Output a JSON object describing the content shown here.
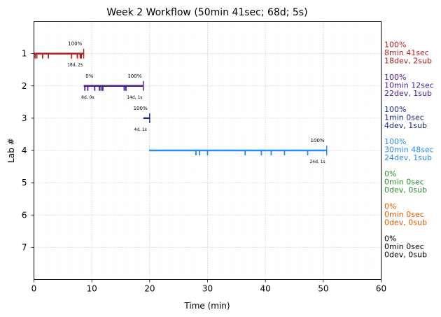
{
  "chart_data": {
    "type": "timeline",
    "title": "Week 2 Workflow (50min 41sec; 68d; 5s)",
    "xlabel": "Time (min)",
    "ylabel": "Lab #",
    "xlim": [
      0,
      60
    ],
    "ylim": [
      8,
      0
    ],
    "x_ticks": [
      0,
      10,
      20,
      30,
      40,
      50,
      60
    ],
    "y_ticks": [
      1,
      2,
      3,
      4,
      5,
      6,
      7
    ],
    "grid": true,
    "labs": [
      {
        "lab": 1,
        "color": "#b22222",
        "start": 0.0,
        "end": 8.6,
        "marker_end": 8.6,
        "pct_labels": [
          {
            "x": 7.1,
            "text": "100%"
          }
        ],
        "count_labels": [
          {
            "x": 7.1,
            "text": "18d, 2s"
          }
        ],
        "ticks": [
          0.2,
          0.5,
          1.5,
          2.5,
          6.5,
          7.5,
          8.0,
          8.2
        ],
        "side": [
          "100%",
          "8min 41sec",
          "18dev, 2sub"
        ]
      },
      {
        "lab": 2,
        "color": "#4b1a8c",
        "start": 8.6,
        "end": 18.9,
        "marker_end": 18.9,
        "pct_labels": [
          {
            "x": 9.6,
            "text": "0%"
          },
          {
            "x": 17.4,
            "text": "100%"
          }
        ],
        "count_labels": [
          {
            "x": 9.3,
            "text": "8d, 0s"
          },
          {
            "x": 17.4,
            "text": "14d, 1s"
          }
        ],
        "ticks": [
          8.8,
          9.3,
          10.5,
          11.3,
          11.6,
          11.9,
          15.6,
          15.9
        ],
        "side": [
          "100%",
          "10min 12sec",
          "22dev, 1sub"
        ]
      },
      {
        "lab": 3,
        "color": "#1a2a7c",
        "start": 18.9,
        "end": 20.0,
        "marker_end": 20.0,
        "pct_labels": [
          {
            "x": 18.4,
            "text": "100%"
          }
        ],
        "count_labels": [
          {
            "x": 18.4,
            "text": "4d, 1s"
          }
        ],
        "ticks": [],
        "side": [
          "100%",
          "1min 0sec",
          "4dev, 1sub"
        ]
      },
      {
        "lab": 4,
        "color": "#2b8de6",
        "start": 19.9,
        "end": 50.6,
        "marker_end": 50.6,
        "pct_labels": [
          {
            "x": 49.0,
            "text": "100%"
          }
        ],
        "count_labels": [
          {
            "x": 49.0,
            "text": "24d, 1s"
          }
        ],
        "ticks": [
          28.0,
          28.6,
          30.0,
          36.5,
          39.3,
          41.0,
          43.3,
          47.3
        ],
        "side": [
          "100%",
          "30min 48sec",
          "24dev, 1sub"
        ]
      },
      {
        "lab": 5,
        "color": "#2e8b2e",
        "start": null,
        "end": null,
        "marker_end": null,
        "pct_labels": [],
        "count_labels": [],
        "ticks": [],
        "side": [
          "0%",
          "0min 0sec",
          "0dev, 0sub"
        ]
      },
      {
        "lab": 6,
        "color": "#e05a00",
        "start": null,
        "end": null,
        "marker_end": null,
        "pct_labels": [],
        "count_labels": [],
        "ticks": [],
        "side": [
          "0%",
          "0min 0sec",
          "0dev, 0sub"
        ]
      },
      {
        "lab": 7,
        "color": "#000000",
        "start": null,
        "end": null,
        "marker_end": null,
        "pct_labels": [],
        "count_labels": [],
        "ticks": [],
        "side": [
          "0%",
          "0min 0sec",
          "0dev, 0sub"
        ]
      }
    ]
  }
}
